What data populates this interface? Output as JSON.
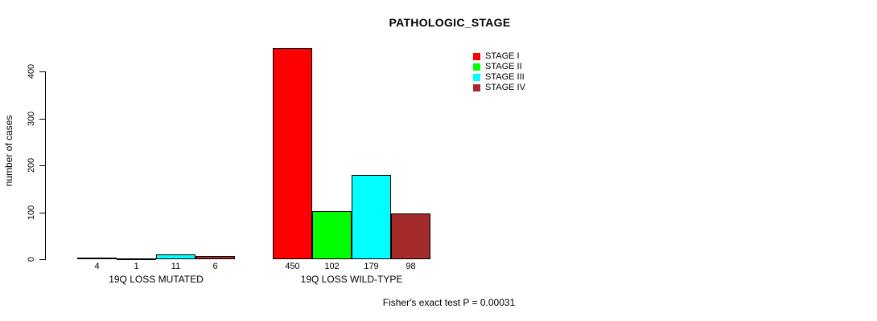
{
  "chart_data": {
    "type": "bar",
    "title": "PATHOLOGIC_STAGE",
    "ylabel": "number of cases",
    "xlabel": "",
    "ylim": [
      0,
      450
    ],
    "yticks": [
      0,
      100,
      200,
      300,
      400
    ],
    "grid": false,
    "legend_position": "top-right",
    "legend": [
      {
        "label": "STAGE I",
        "color": "#ff0000"
      },
      {
        "label": "STAGE II",
        "color": "#00ff00"
      },
      {
        "label": "STAGE III",
        "color": "#00ffff"
      },
      {
        "label": "STAGE IV",
        "color": "#a52a2a"
      }
    ],
    "categories": [
      "19Q LOSS MUTATED",
      "19Q LOSS WILD-TYPE"
    ],
    "groups": [
      {
        "label": "19Q LOSS MUTATED",
        "values": [
          4,
          1,
          11,
          6
        ]
      },
      {
        "label": "19Q LOSS WILD-TYPE",
        "values": [
          450,
          102,
          179,
          98
        ]
      }
    ],
    "annotation": "Fisher's exact test P = 0.00031"
  }
}
